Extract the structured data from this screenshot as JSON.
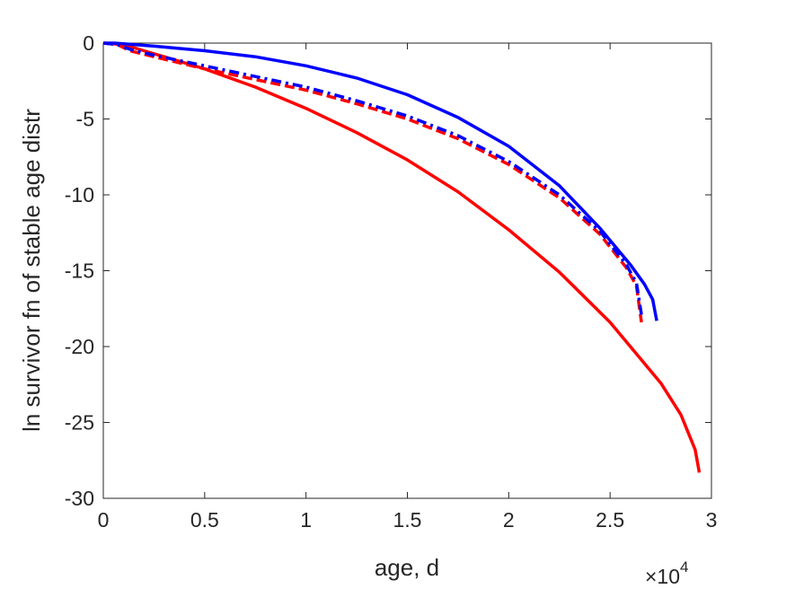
{
  "chart_data": {
    "type": "line",
    "xlabel": "age, d",
    "ylabel": "ln survivor fn of stable age distr",
    "x_multiplier": "×10",
    "x_multiplier_exp": "4",
    "xlim": [
      0,
      30000
    ],
    "ylim": [
      -30,
      0
    ],
    "x_ticks": [
      0,
      5000,
      10000,
      15000,
      20000,
      25000,
      30000
    ],
    "x_tick_labels": [
      "0",
      "0.5",
      "1",
      "1.5",
      "2",
      "2.5",
      "3"
    ],
    "y_ticks": [
      0,
      -5,
      -10,
      -15,
      -20,
      -25,
      -30
    ],
    "y_tick_labels": [
      "0",
      "-5",
      "-10",
      "-15",
      "-20",
      "-25",
      "-30"
    ],
    "grid": false,
    "series": [
      {
        "color": "#ff0000",
        "style": "solid",
        "x": [
          0,
          1000,
          2000,
          3000,
          5000,
          7500,
          10000,
          12500,
          15000,
          17500,
          20000,
          22500,
          25000,
          27500,
          28500,
          29200,
          29400
        ],
        "y": [
          0,
          -0.1,
          -0.5,
          -0.9,
          -1.7,
          -2.9,
          -4.3,
          -5.9,
          -7.7,
          -9.8,
          -12.3,
          -15.1,
          -18.4,
          -22.4,
          -24.5,
          -26.8,
          -28.3
        ]
      },
      {
        "color": "#0000ff",
        "style": "solid",
        "x": [
          0,
          500,
          1000,
          2500,
          5000,
          7500,
          10000,
          12500,
          15000,
          17500,
          20000,
          22500,
          24500,
          26000,
          26700,
          27100,
          27300
        ],
        "y": [
          0,
          0,
          -0.05,
          -0.2,
          -0.5,
          -0.9,
          -1.5,
          -2.3,
          -3.4,
          -4.9,
          -6.8,
          -9.4,
          -12.2,
          -14.6,
          -15.9,
          -16.9,
          -18.3
        ]
      },
      {
        "color": "#ff0000",
        "style": "dashed",
        "x": [
          0,
          700,
          1300,
          2500,
          5000,
          7500,
          10000,
          12500,
          15000,
          17500,
          20000,
          22500,
          24500,
          25800,
          26300,
          26550
        ],
        "y": [
          0,
          -0.1,
          -0.5,
          -0.9,
          -1.7,
          -2.4,
          -3.1,
          -4.0,
          -5.0,
          -6.3,
          -8.0,
          -10.2,
          -12.6,
          -14.8,
          -16.0,
          -18.4
        ]
      },
      {
        "color": "#0000ff",
        "style": "dashdot",
        "x": [
          0,
          700,
          1300,
          2500,
          5000,
          7500,
          10000,
          12500,
          15000,
          17500,
          20000,
          22500,
          24500,
          25800,
          26300,
          26550
        ],
        "y": [
          0,
          -0.1,
          -0.4,
          -0.8,
          -1.5,
          -2.2,
          -2.9,
          -3.8,
          -4.8,
          -6.1,
          -7.8,
          -10.0,
          -12.4,
          -14.6,
          -15.8,
          -17.9
        ]
      }
    ]
  }
}
